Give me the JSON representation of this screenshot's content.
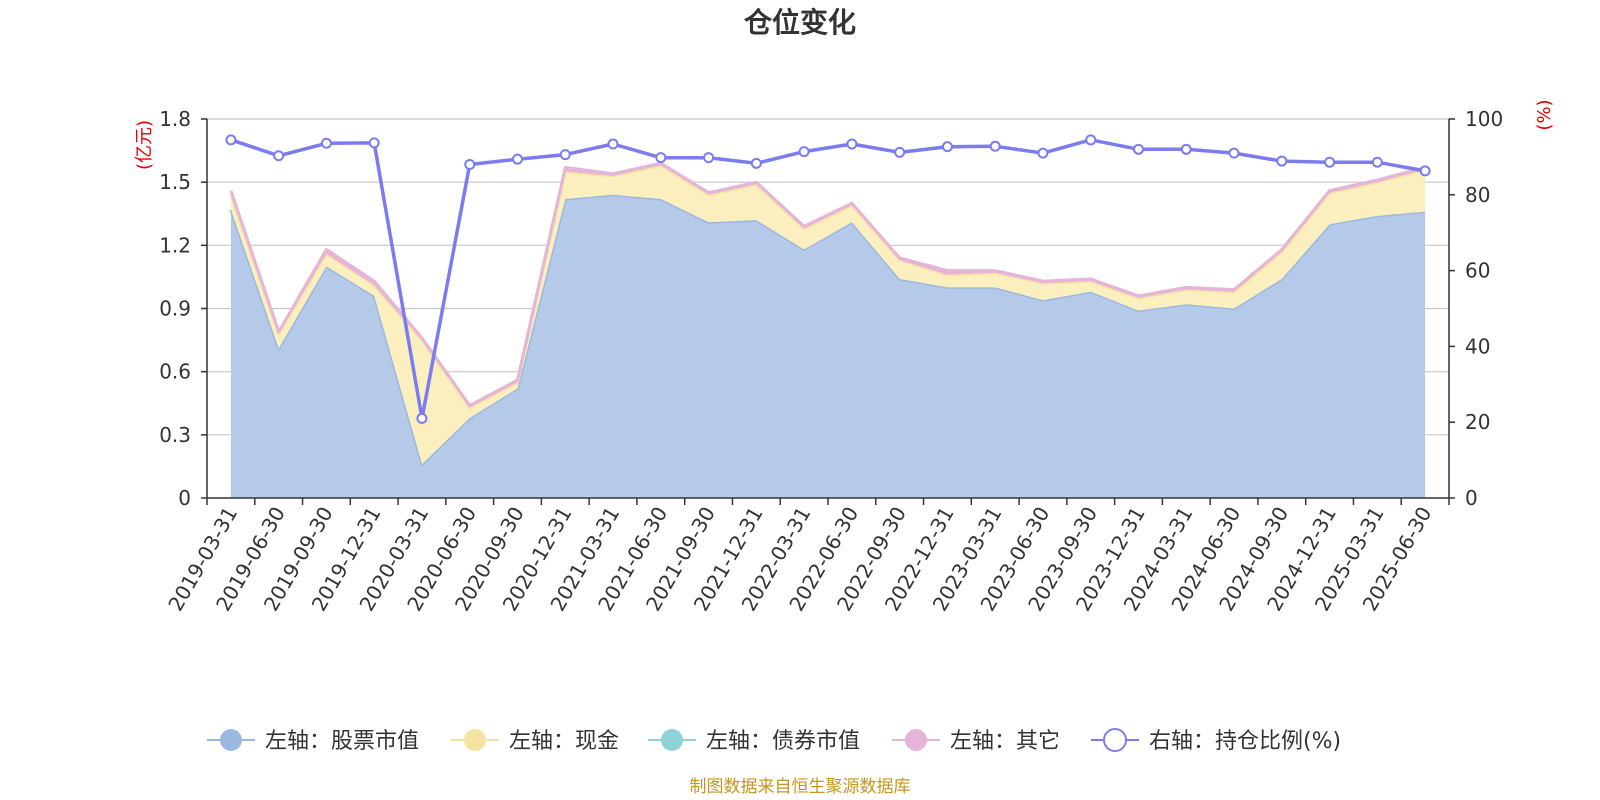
{
  "chart_data": {
    "type": "area",
    "title": "仓位变化",
    "left_axis_unit": "(亿元)",
    "right_axis_unit": "(%)",
    "left_ylim": [
      0,
      1.8
    ],
    "left_yticks": [
      "0",
      "0.3",
      "0.6",
      "0.9",
      "1.2",
      "1.5",
      "1.8"
    ],
    "right_ylim": [
      0,
      100
    ],
    "right_yticks": [
      "0",
      "20",
      "40",
      "60",
      "80",
      "100"
    ],
    "grid": true,
    "legend_position": "bottom",
    "categories": [
      "2019-03-31",
      "2019-06-30",
      "2019-09-30",
      "2019-12-31",
      "2020-03-31",
      "2020-06-30",
      "2020-09-30",
      "2020-12-31",
      "2021-03-31",
      "2021-06-30",
      "2021-09-30",
      "2021-12-31",
      "2022-03-31",
      "2022-06-30",
      "2022-09-30",
      "2022-12-31",
      "2023-03-31",
      "2023-06-30",
      "2023-09-30",
      "2023-12-31",
      "2024-03-31",
      "2024-06-30",
      "2024-09-30",
      "2024-12-31",
      "2025-03-31",
      "2025-06-30"
    ],
    "series": [
      {
        "name": "左轴：股票市值",
        "axis": "left",
        "stack": true,
        "color": "#9bb8e0",
        "values": [
          1.37,
          0.71,
          1.1,
          0.96,
          0.16,
          0.38,
          0.52,
          1.42,
          1.44,
          1.42,
          1.31,
          1.32,
          1.18,
          1.31,
          1.04,
          1.0,
          1.0,
          0.94,
          0.98,
          0.89,
          0.92,
          0.9,
          1.04,
          1.3,
          1.34,
          1.36
        ]
      },
      {
        "name": "左轴：现金",
        "axis": "left",
        "stack": true,
        "color": "#f5e3a0",
        "values": [
          0.07,
          0.07,
          0.06,
          0.05,
          0.59,
          0.05,
          0.03,
          0.13,
          0.09,
          0.16,
          0.13,
          0.17,
          0.1,
          0.08,
          0.09,
          0.06,
          0.07,
          0.08,
          0.05,
          0.06,
          0.07,
          0.08,
          0.13,
          0.15,
          0.16,
          0.2
        ]
      },
      {
        "name": "左轴：债券市值",
        "axis": "left",
        "stack": true,
        "color": "#8dd3d6",
        "values": [
          0,
          0,
          0,
          0,
          0,
          0,
          0,
          0,
          0,
          0,
          0,
          0,
          0,
          0,
          0,
          0,
          0,
          0,
          0,
          0,
          0,
          0,
          0,
          0,
          0,
          0
        ]
      },
      {
        "name": "左轴：其它",
        "axis": "left",
        "stack": true,
        "color": "#e6b4d8",
        "values": [
          0.02,
          0.01,
          0.02,
          0.02,
          0.01,
          0.01,
          0.01,
          0.02,
          0.01,
          0.01,
          0.01,
          0.01,
          0.01,
          0.01,
          0.01,
          0.02,
          0.01,
          0.01,
          0.01,
          0.01,
          0.01,
          0.01,
          0.01,
          0.01,
          0.01,
          0.01
        ]
      },
      {
        "name": "右轴：持仓比例(%)",
        "axis": "right",
        "type": "line",
        "color": "#7b7cf0",
        "values": [
          94.5,
          90.3,
          93.6,
          93.7,
          21.0,
          88.0,
          89.4,
          90.6,
          93.4,
          89.8,
          89.8,
          88.3,
          91.4,
          93.4,
          91.2,
          92.7,
          92.8,
          91.0,
          94.5,
          92.0,
          92.0,
          91.0,
          88.9,
          88.6,
          88.6,
          86.3
        ]
      }
    ],
    "source": "制图数据来自恒生聚源数据库"
  }
}
